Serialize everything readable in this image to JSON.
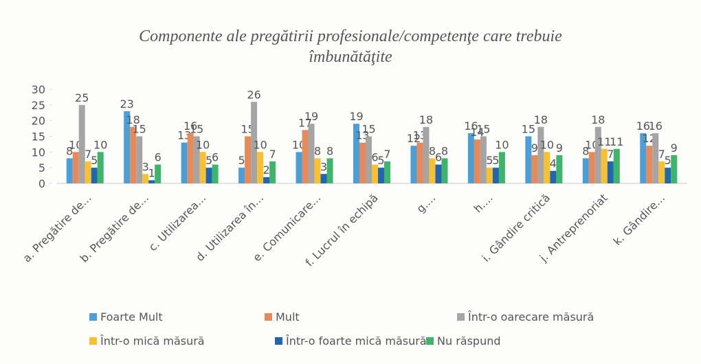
{
  "chart_data": {
    "type": "bar",
    "title": "Componente ale  pregătirii profesionale/competenţe care trebuie îmbunătăţite",
    "categories": [
      "a. Pregătire de...",
      "b. Pregătire de...",
      "c. Utilizarea...",
      "d. Utilizarea în...",
      "e. Comunicare...",
      "f. Lucrul în echipă",
      "g....",
      "h....",
      "i. Gândire critică",
      "j. Antreprenoriat",
      "k. Gândire..."
    ],
    "series": [
      {
        "name": "Foarte Mult",
        "color": "#4a9fd8",
        "values": [
          8,
          23,
          13,
          5,
          10,
          19,
          12,
          16,
          15,
          8,
          16
        ]
      },
      {
        "name": "Mult",
        "color": "#e8895a",
        "values": [
          10,
          18,
          16,
          15,
          17,
          13,
          13,
          14,
          9,
          10,
          12
        ]
      },
      {
        "name": "Într-o oarecare măsură",
        "color": "#a5a5a5",
        "values": [
          25,
          15,
          15,
          26,
          19,
          15,
          18,
          15,
          18,
          18,
          16
        ]
      },
      {
        "name": "Într-o mică măsură",
        "color": "#f7c132",
        "values": [
          7,
          3,
          10,
          10,
          8,
          6,
          8,
          5,
          10,
          11,
          7
        ]
      },
      {
        "name": "Într-o foarte mică măsură",
        "color": "#2266b0",
        "values": [
          5,
          1,
          5,
          2,
          3,
          5,
          6,
          5,
          4,
          7,
          5
        ]
      },
      {
        "name": "Nu răspund",
        "color": "#3db56b",
        "values": [
          10,
          6,
          6,
          7,
          8,
          7,
          8,
          10,
          9,
          11,
          9
        ]
      }
    ],
    "ylim": [
      0,
      30
    ],
    "yticks": [
      0,
      5,
      10,
      15,
      20,
      25,
      30
    ],
    "grid": false
  }
}
